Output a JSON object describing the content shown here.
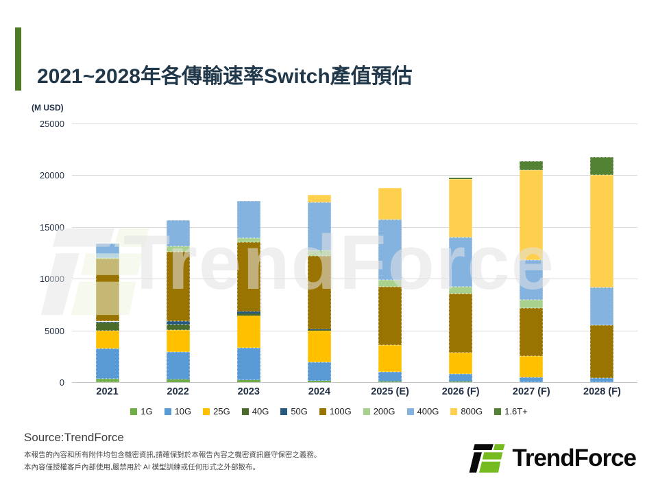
{
  "header": {
    "title": "2021~2028年各傳輸速率Switch產值預估"
  },
  "chart": {
    "unit_label": "(M USD)"
  },
  "chart_data": {
    "type": "bar",
    "stacked": true,
    "title": "2021~2028年各傳輸速率Switch產值預估",
    "xlabel": "",
    "ylabel": "(M USD)",
    "ylim": [
      0,
      25000
    ],
    "yticks": [
      0,
      5000,
      10000,
      15000,
      20000,
      25000
    ],
    "grid": "horizontal",
    "legend_position": "bottom",
    "categories": [
      "2021",
      "2022",
      "2023",
      "2024",
      "2025 (E)",
      "2026 (F)",
      "2027 (F)",
      "2028 (F)"
    ],
    "series": [
      {
        "name": "1G",
        "color": "#70AD47",
        "values": [
          300,
          250,
          200,
          150,
          100,
          50,
          0,
          0
        ]
      },
      {
        "name": "10G",
        "color": "#5B9BD5",
        "values": [
          2950,
          2700,
          3100,
          1750,
          900,
          750,
          450,
          400
        ]
      },
      {
        "name": "25G",
        "color": "#FFC000",
        "values": [
          1700,
          2100,
          3150,
          3050,
          2550,
          2050,
          2050,
          0
        ]
      },
      {
        "name": "40G",
        "color": "#4A6B29",
        "values": [
          800,
          550,
          200,
          80,
          0,
          0,
          0,
          0
        ]
      },
      {
        "name": "50G",
        "color": "#26597F",
        "values": [
          120,
          280,
          160,
          100,
          0,
          0,
          0,
          0
        ]
      },
      {
        "name": "100G",
        "color": "#997400",
        "values": [
          6050,
          6700,
          6750,
          7050,
          5700,
          5700,
          4650,
          5100
        ]
      },
      {
        "name": "200G",
        "color": "#A9D18E",
        "values": [
          100,
          550,
          380,
          550,
          650,
          650,
          780,
          0
        ]
      },
      {
        "name": "400G",
        "color": "#85B3DF",
        "values": [
          1350,
          2500,
          3550,
          4650,
          5850,
          4800,
          3900,
          3650
        ]
      },
      {
        "name": "800G",
        "color": "#FFD04D",
        "values": [
          0,
          0,
          0,
          700,
          3050,
          5600,
          8650,
          10850
        ]
      },
      {
        "name": "1.6T+",
        "color": "#548235",
        "values": [
          0,
          0,
          0,
          0,
          0,
          180,
          850,
          1770
        ]
      }
    ]
  },
  "watermark": {
    "text": "TrendForce"
  },
  "footer": {
    "source": "Source:TrendForce",
    "disclaimer_line1": "本報告的內容和所有附件均包含機密資訊,請確保對於本報告內容之機密資訊嚴守保密之義務。",
    "disclaimer_line2": "本內容僅授權客戶內部使用,嚴禁用於 AI 模型訓練或任何形式之外部散布。",
    "logo_text": "TrendForce"
  }
}
